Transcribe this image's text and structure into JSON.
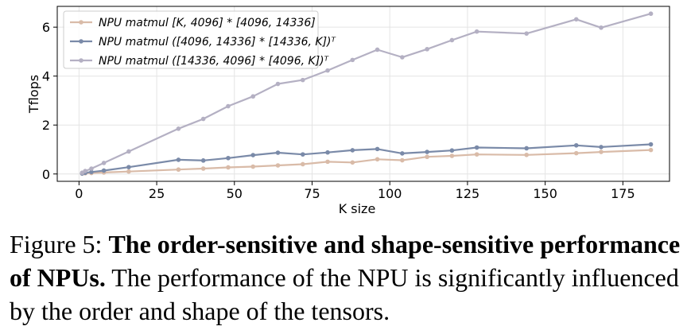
{
  "chart_data": {
    "type": "line",
    "xlabel": "K size",
    "ylabel": "Tflops",
    "xlim": [
      -7,
      190
    ],
    "ylim": [
      -0.3,
      6.85
    ],
    "xticks": [
      0,
      25,
      50,
      75,
      100,
      125,
      150,
      175
    ],
    "yticks": [
      0,
      2,
      4,
      6
    ],
    "grid": true,
    "legend_position": "top-left",
    "x": [
      1,
      2,
      4,
      8,
      16,
      32,
      40,
      48,
      56,
      64,
      72,
      80,
      88,
      96,
      104,
      112,
      120,
      128,
      144,
      160,
      168,
      184
    ],
    "series": [
      {
        "name": "NPU matmul [K, 4096] * [4096, 14336]",
        "color": "#d9bba8",
        "values": [
          0.02,
          0.03,
          0.04,
          0.06,
          0.1,
          0.18,
          0.22,
          0.27,
          0.3,
          0.35,
          0.4,
          0.5,
          0.47,
          0.6,
          0.56,
          0.7,
          0.74,
          0.8,
          0.78,
          0.85,
          0.9,
          0.98
        ]
      },
      {
        "name": "NPU matmul ([4096, 14336] * [14336, K])ᵀ",
        "color": "#7a8aa8",
        "values": [
          0.02,
          0.05,
          0.08,
          0.14,
          0.28,
          0.58,
          0.55,
          0.65,
          0.77,
          0.87,
          0.8,
          0.88,
          0.97,
          1.02,
          0.84,
          0.9,
          0.96,
          1.08,
          1.05,
          1.17,
          1.1,
          1.21
        ]
      },
      {
        "name": "NPU matmul ([14336, 4096] * [4096, K])ᵀ",
        "color": "#b4b0c3",
        "values": [
          0.05,
          0.12,
          0.22,
          0.45,
          0.92,
          1.85,
          2.25,
          2.77,
          3.17,
          3.68,
          3.84,
          4.23,
          4.66,
          5.08,
          4.77,
          5.1,
          5.47,
          5.82,
          5.74,
          6.32,
          5.98,
          6.55
        ]
      }
    ]
  },
  "caption": {
    "prefix": "Figure 5: ",
    "title": "The order-sensitive and shape-sensitive performance of NPUs.",
    "body": " The performance of the NPU is significantly influenced by the order and shape of the tensors."
  }
}
